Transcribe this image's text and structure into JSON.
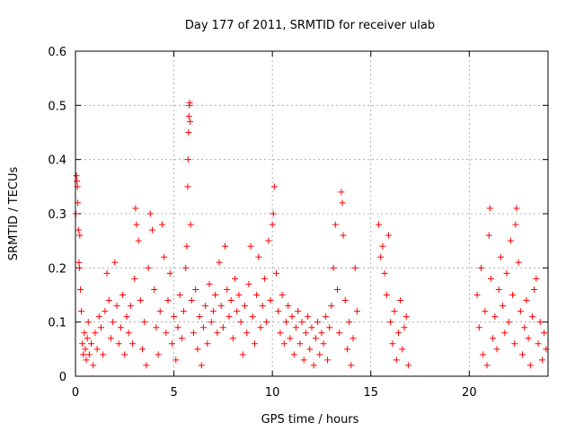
{
  "chart_data": {
    "type": "scatter",
    "title": "Day 177 of 2011, SRMTID for receiver ulab",
    "xlabel": "GPS time / hours",
    "ylabel": "SRMTID / TECUs",
    "xlim": [
      0,
      24
    ],
    "ylim": [
      0,
      0.6
    ],
    "xticks": [
      0,
      5,
      10,
      15,
      20
    ],
    "xtick_labels": [
      "0",
      "5",
      "10",
      "15",
      "20"
    ],
    "yticks": [
      0,
      0.1,
      0.2,
      0.3,
      0.4,
      0.5,
      0.6
    ],
    "ytick_labels": [
      "0",
      "0.1",
      "0.2",
      "0.3",
      "0.4",
      "0.5",
      "0.6"
    ],
    "grid": true,
    "marker": "+",
    "color": "#ff0000",
    "series": [
      {
        "name": "SRMTID",
        "points": [
          [
            0.02,
            0.3
          ],
          [
            0.05,
            0.37
          ],
          [
            0.08,
            0.36
          ],
          [
            0.1,
            0.35
          ],
          [
            0.12,
            0.32
          ],
          [
            0.15,
            0.27
          ],
          [
            0.18,
            0.21
          ],
          [
            0.2,
            0.2
          ],
          [
            0.22,
            0.26
          ],
          [
            0.25,
            0.16
          ],
          [
            0.3,
            0.12
          ],
          [
            0.35,
            0.06
          ],
          [
            0.4,
            0.04
          ],
          [
            0.45,
            0.08
          ],
          [
            0.5,
            0.05
          ],
          [
            0.55,
            0.03
          ],
          [
            0.6,
            0.07
          ],
          [
            0.65,
            0.1
          ],
          [
            0.7,
            0.04
          ],
          [
            0.8,
            0.06
          ],
          [
            0.9,
            0.02
          ],
          [
            1.0,
            0.08
          ],
          [
            1.1,
            0.05
          ],
          [
            1.2,
            0.11
          ],
          [
            1.3,
            0.09
          ],
          [
            1.4,
            0.04
          ],
          [
            1.5,
            0.12
          ],
          [
            1.6,
            0.19
          ],
          [
            1.7,
            0.14
          ],
          [
            1.8,
            0.07
          ],
          [
            1.9,
            0.1
          ],
          [
            2.0,
            0.21
          ],
          [
            2.1,
            0.13
          ],
          [
            2.2,
            0.06
          ],
          [
            2.3,
            0.09
          ],
          [
            2.4,
            0.15
          ],
          [
            2.5,
            0.04
          ],
          [
            2.6,
            0.11
          ],
          [
            2.7,
            0.08
          ],
          [
            2.8,
            0.13
          ],
          [
            2.9,
            0.06
          ],
          [
            3.0,
            0.18
          ],
          [
            3.05,
            0.31
          ],
          [
            3.1,
            0.28
          ],
          [
            3.2,
            0.25
          ],
          [
            3.3,
            0.14
          ],
          [
            3.4,
            0.05
          ],
          [
            3.5,
            0.1
          ],
          [
            3.6,
            0.02
          ],
          [
            3.7,
            0.2
          ],
          [
            3.8,
            0.3
          ],
          [
            3.9,
            0.27
          ],
          [
            4.0,
            0.16
          ],
          [
            4.1,
            0.09
          ],
          [
            4.2,
            0.04
          ],
          [
            4.3,
            0.12
          ],
          [
            4.4,
            0.28
          ],
          [
            4.5,
            0.22
          ],
          [
            4.6,
            0.08
          ],
          [
            4.7,
            0.14
          ],
          [
            4.8,
            0.19
          ],
          [
            4.9,
            0.06
          ],
          [
            5.0,
            0.11
          ],
          [
            5.1,
            0.03
          ],
          [
            5.2,
            0.09
          ],
          [
            5.3,
            0.15
          ],
          [
            5.4,
            0.07
          ],
          [
            5.5,
            0.12
          ],
          [
            5.6,
            0.2
          ],
          [
            5.65,
            0.24
          ],
          [
            5.7,
            0.35
          ],
          [
            5.72,
            0.4
          ],
          [
            5.74,
            0.45
          ],
          [
            5.76,
            0.48
          ],
          [
            5.78,
            0.5
          ],
          [
            5.8,
            0.505
          ],
          [
            5.82,
            0.47
          ],
          [
            5.85,
            0.28
          ],
          [
            5.9,
            0.14
          ],
          [
            6.0,
            0.08
          ],
          [
            6.1,
            0.16
          ],
          [
            6.2,
            0.05
          ],
          [
            6.3,
            0.11
          ],
          [
            6.4,
            0.02
          ],
          [
            6.5,
            0.09
          ],
          [
            6.6,
            0.13
          ],
          [
            6.7,
            0.06
          ],
          [
            6.8,
            0.17
          ],
          [
            6.9,
            0.1
          ],
          [
            7.0,
            0.12
          ],
          [
            7.1,
            0.15
          ],
          [
            7.2,
            0.08
          ],
          [
            7.3,
            0.21
          ],
          [
            7.4,
            0.13
          ],
          [
            7.5,
            0.09
          ],
          [
            7.6,
            0.24
          ],
          [
            7.7,
            0.16
          ],
          [
            7.8,
            0.11
          ],
          [
            7.9,
            0.14
          ],
          [
            8.0,
            0.07
          ],
          [
            8.1,
            0.18
          ],
          [
            8.2,
            0.12
          ],
          [
            8.3,
            0.15
          ],
          [
            8.4,
            0.1
          ],
          [
            8.5,
            0.04
          ],
          [
            8.6,
            0.13
          ],
          [
            8.7,
            0.08
          ],
          [
            8.8,
            0.17
          ],
          [
            8.9,
            0.24
          ],
          [
            9.0,
            0.11
          ],
          [
            9.1,
            0.06
          ],
          [
            9.2,
            0.15
          ],
          [
            9.3,
            0.22
          ],
          [
            9.4,
            0.09
          ],
          [
            9.5,
            0.13
          ],
          [
            9.6,
            0.18
          ],
          [
            9.7,
            0.1
          ],
          [
            9.8,
            0.25
          ],
          [
            9.9,
            0.14
          ],
          [
            10.0,
            0.28
          ],
          [
            10.05,
            0.3
          ],
          [
            10.1,
            0.35
          ],
          [
            10.2,
            0.19
          ],
          [
            10.3,
            0.12
          ],
          [
            10.4,
            0.08
          ],
          [
            10.5,
            0.15
          ],
          [
            10.6,
            0.06
          ],
          [
            10.7,
            0.1
          ],
          [
            10.8,
            0.13
          ],
          [
            10.9,
            0.07
          ],
          [
            11.0,
            0.11
          ],
          [
            11.1,
            0.04
          ],
          [
            11.2,
            0.09
          ],
          [
            11.3,
            0.12
          ],
          [
            11.4,
            0.06
          ],
          [
            11.5,
            0.1
          ],
          [
            11.6,
            0.03
          ],
          [
            11.7,
            0.08
          ],
          [
            11.8,
            0.11
          ],
          [
            11.9,
            0.05
          ],
          [
            12.0,
            0.09
          ],
          [
            12.1,
            0.02
          ],
          [
            12.2,
            0.07
          ],
          [
            12.3,
            0.1
          ],
          [
            12.4,
            0.04
          ],
          [
            12.5,
            0.08
          ],
          [
            12.6,
            0.06
          ],
          [
            12.7,
            0.11
          ],
          [
            12.8,
            0.03
          ],
          [
            12.9,
            0.09
          ],
          [
            13.0,
            0.13
          ],
          [
            13.1,
            0.2
          ],
          [
            13.2,
            0.28
          ],
          [
            13.3,
            0.16
          ],
          [
            13.4,
            0.08
          ],
          [
            13.5,
            0.34
          ],
          [
            13.55,
            0.32
          ],
          [
            13.6,
            0.26
          ],
          [
            13.7,
            0.14
          ],
          [
            13.8,
            0.05
          ],
          [
            13.9,
            0.1
          ],
          [
            14.0,
            0.02
          ],
          [
            14.1,
            0.07
          ],
          [
            14.2,
            0.2
          ],
          [
            14.3,
            0.12
          ],
          [
            15.4,
            0.28
          ],
          [
            15.5,
            0.22
          ],
          [
            15.6,
            0.24
          ],
          [
            15.7,
            0.19
          ],
          [
            15.8,
            0.15
          ],
          [
            15.9,
            0.26
          ],
          [
            16.0,
            0.1
          ],
          [
            16.1,
            0.06
          ],
          [
            16.2,
            0.12
          ],
          [
            16.3,
            0.03
          ],
          [
            16.4,
            0.08
          ],
          [
            16.5,
            0.14
          ],
          [
            16.6,
            0.05
          ],
          [
            16.7,
            0.09
          ],
          [
            16.8,
            0.11
          ],
          [
            16.9,
            0.02
          ],
          [
            20.4,
            0.15
          ],
          [
            20.5,
            0.09
          ],
          [
            20.6,
            0.2
          ],
          [
            20.7,
            0.04
          ],
          [
            20.8,
            0.12
          ],
          [
            20.9,
            0.02
          ],
          [
            21.0,
            0.26
          ],
          [
            21.05,
            0.31
          ],
          [
            21.1,
            0.18
          ],
          [
            21.2,
            0.07
          ],
          [
            21.3,
            0.11
          ],
          [
            21.4,
            0.05
          ],
          [
            21.5,
            0.16
          ],
          [
            21.6,
            0.22
          ],
          [
            21.7,
            0.13
          ],
          [
            21.8,
            0.08
          ],
          [
            21.9,
            0.19
          ],
          [
            22.0,
            0.1
          ],
          [
            22.1,
            0.25
          ],
          [
            22.2,
            0.15
          ],
          [
            22.3,
            0.06
          ],
          [
            22.35,
            0.28
          ],
          [
            22.4,
            0.31
          ],
          [
            22.5,
            0.21
          ],
          [
            22.6,
            0.12
          ],
          [
            22.7,
            0.04
          ],
          [
            22.8,
            0.09
          ],
          [
            22.9,
            0.14
          ],
          [
            23.0,
            0.07
          ],
          [
            23.1,
            0.02
          ],
          [
            23.2,
            0.11
          ],
          [
            23.3,
            0.16
          ],
          [
            23.4,
            0.18
          ],
          [
            23.5,
            0.06
          ],
          [
            23.6,
            0.1
          ],
          [
            23.7,
            0.03
          ],
          [
            23.8,
            0.08
          ],
          [
            23.9,
            0.05
          ]
        ]
      }
    ]
  }
}
